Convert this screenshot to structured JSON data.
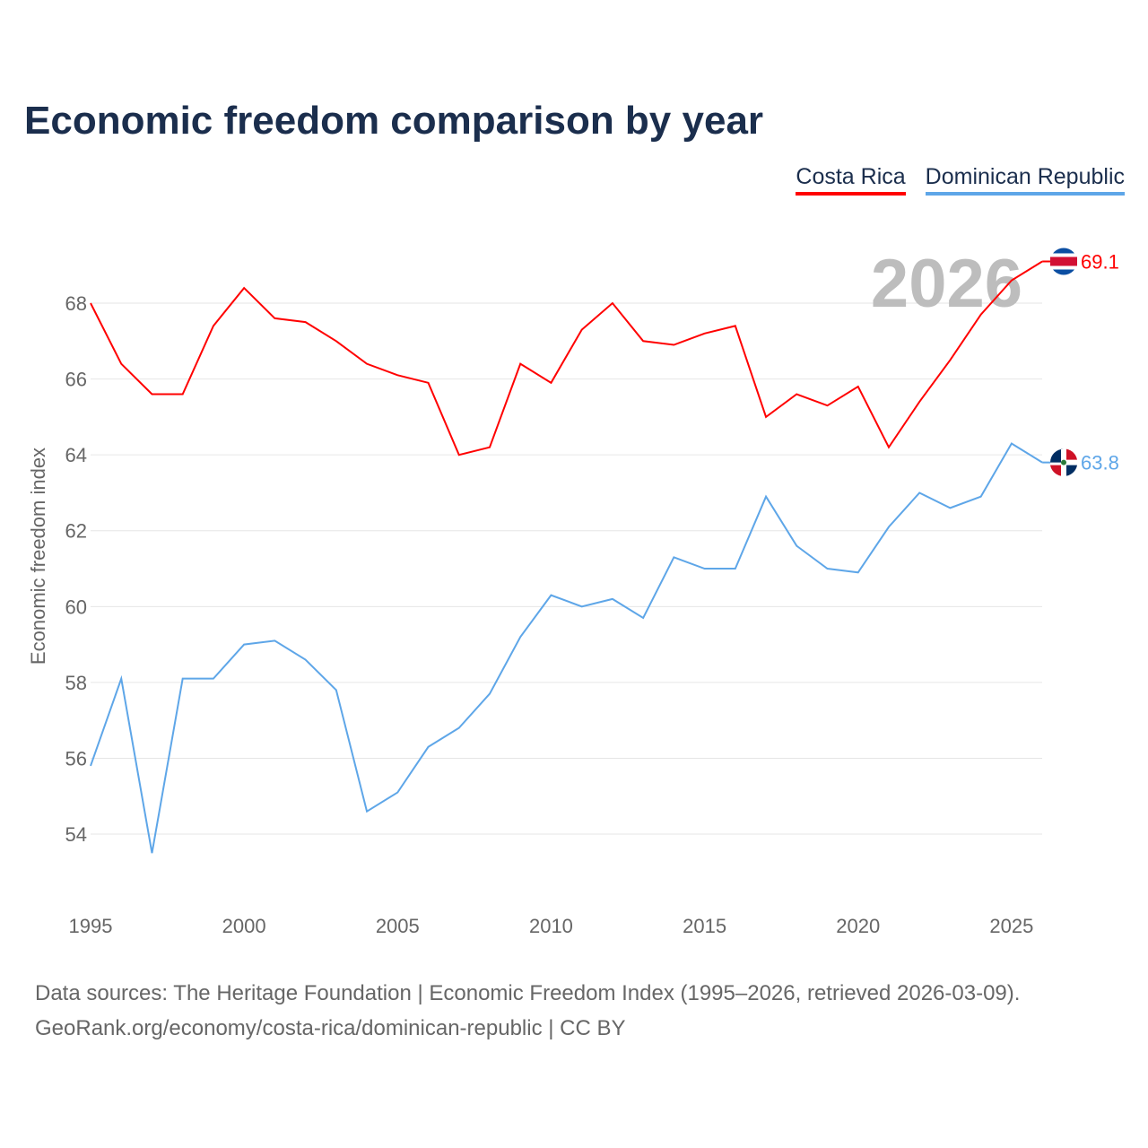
{
  "title": "Economic freedom comparison by year",
  "source_line1": "Data sources: The Heritage Foundation | Economic Freedom Index (1995–2026, retrieved 2026-03-09).",
  "source_line2": "GeoRank.org/economy/costa-rica/dominican-republic | CC BY",
  "chart_data": {
    "type": "line",
    "title": "Economic freedom comparison by year",
    "xlabel": "",
    "ylabel": "Economic freedom index",
    "watermark_year": "2026",
    "x": [
      1995,
      1996,
      1997,
      1998,
      1999,
      2000,
      2001,
      2002,
      2003,
      2004,
      2005,
      2006,
      2007,
      2008,
      2009,
      2010,
      2011,
      2012,
      2013,
      2014,
      2015,
      2016,
      2017,
      2018,
      2019,
      2020,
      2021,
      2022,
      2023,
      2024,
      2025,
      2026
    ],
    "xticks": [
      1995,
      2000,
      2005,
      2010,
      2015,
      2020,
      2025
    ],
    "yticks": [
      54,
      56,
      58,
      60,
      62,
      64,
      66,
      68
    ],
    "ylim": [
      52.5,
      70
    ],
    "legend_position": "top-right",
    "series": [
      {
        "name": "Costa Rica",
        "color": "#ff0000",
        "end_label": "69.1",
        "flag": "costa-rica-flag-icon",
        "values": [
          68.0,
          66.4,
          65.6,
          65.6,
          67.4,
          68.4,
          67.6,
          67.5,
          67.0,
          66.4,
          66.1,
          65.9,
          64.0,
          64.2,
          66.4,
          65.9,
          67.3,
          68.0,
          67.0,
          66.9,
          67.2,
          67.4,
          65.0,
          65.6,
          65.3,
          65.8,
          64.2,
          65.4,
          66.5,
          67.7,
          68.6,
          69.1
        ]
      },
      {
        "name": "Dominican Republic",
        "color": "#5ea6e8",
        "end_label": "63.8",
        "flag": "dominican-republic-flag-icon",
        "values": [
          55.8,
          58.1,
          53.5,
          58.1,
          58.1,
          59.0,
          59.1,
          58.6,
          57.8,
          54.6,
          55.1,
          56.3,
          56.8,
          57.7,
          59.2,
          60.3,
          60.0,
          60.2,
          59.7,
          61.3,
          61.0,
          61.0,
          62.9,
          61.6,
          61.0,
          60.9,
          62.1,
          63.0,
          62.6,
          62.9,
          64.3,
          63.8
        ]
      }
    ]
  }
}
